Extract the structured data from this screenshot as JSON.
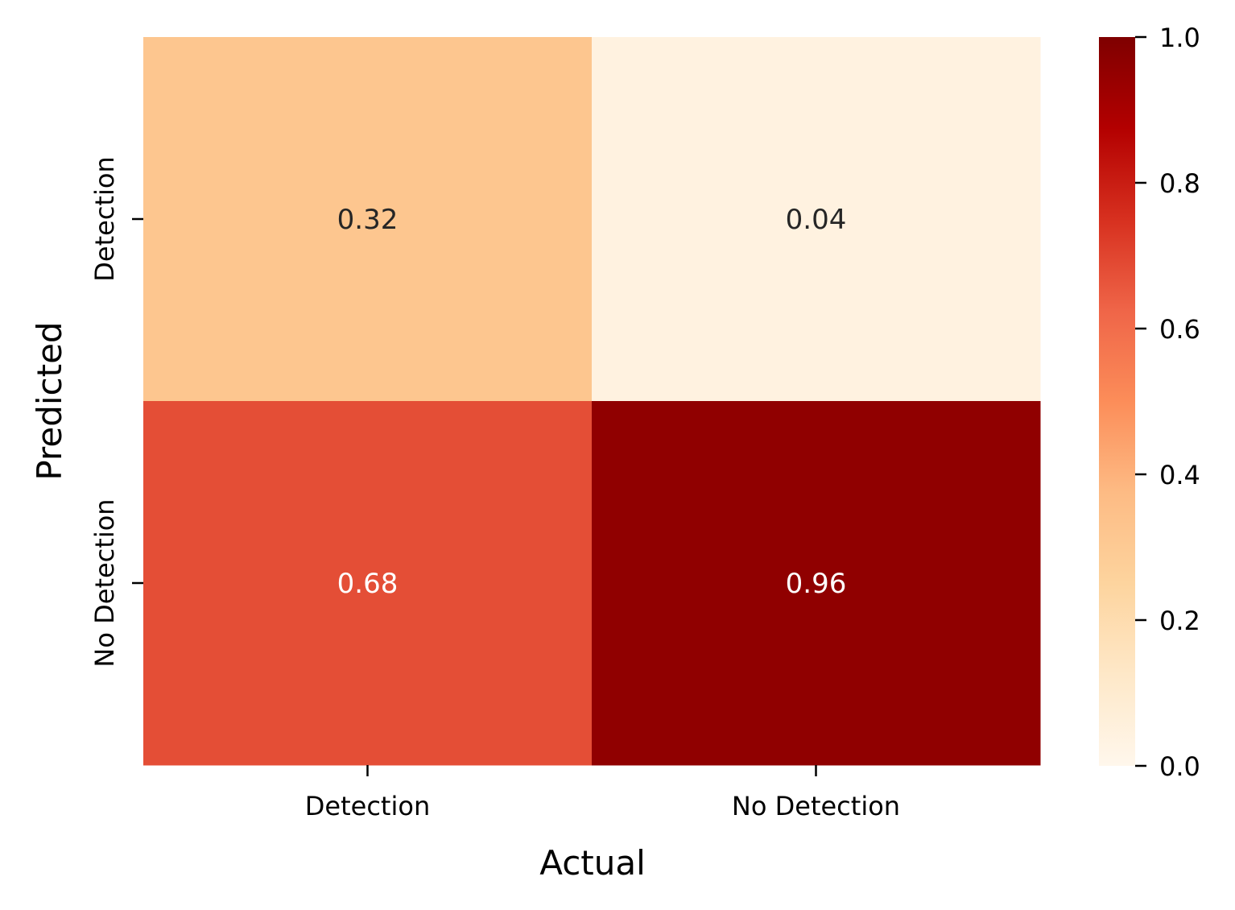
{
  "chart_data": {
    "type": "heatmap",
    "title": "",
    "xlabel": "Actual",
    "ylabel": "Predicted",
    "x_categories": [
      "Detection",
      "No Detection"
    ],
    "y_categories": [
      "Detection",
      "No Detection"
    ],
    "values": [
      [
        0.32,
        0.04
      ],
      [
        0.68,
        0.96
      ]
    ],
    "value_labels": [
      [
        "0.32",
        "0.04"
      ],
      [
        "0.68",
        "0.96"
      ]
    ],
    "colorbar": {
      "range": [
        0.0,
        1.0
      ],
      "ticks": [
        0.0,
        0.2,
        0.4,
        0.6,
        0.8,
        1.0
      ],
      "tick_labels": [
        "0.0",
        "0.2",
        "0.4",
        "0.6",
        "0.8",
        "1.0"
      ],
      "colormap": "OrRd"
    },
    "colormap_stops": [
      "#fff7ec",
      "#fee8c8",
      "#fdd49e",
      "#fdbb84",
      "#fc8d59",
      "#ef6548",
      "#d7301f",
      "#b30000",
      "#7f0000"
    ]
  }
}
